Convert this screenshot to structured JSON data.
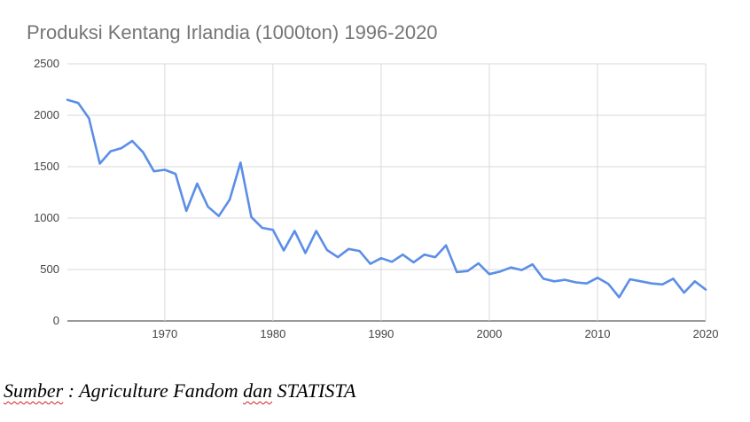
{
  "caption": {
    "source_prefix": "Sumber",
    "source_rest": " : Agriculture Fandom ",
    "source_dan": "dan",
    "source_end": " STATISTA"
  },
  "chart_data": {
    "type": "line",
    "title": "Produksi Kentang Irlandia (1000ton) 1996-2020",
    "xlabel": "",
    "ylabel": "",
    "xlim": [
      1961,
      2020
    ],
    "ylim": [
      0,
      2500
    ],
    "x_ticks": [
      1970,
      1980,
      1990,
      2000,
      2010,
      2020
    ],
    "y_ticks": [
      0,
      500,
      1000,
      1500,
      2000,
      2500
    ],
    "grid": true,
    "legend": "none",
    "line_color": "#5b8ee6",
    "x": [
      1961,
      1962,
      1963,
      1964,
      1965,
      1966,
      1967,
      1968,
      1969,
      1970,
      1971,
      1972,
      1973,
      1974,
      1975,
      1976,
      1977,
      1978,
      1979,
      1980,
      1981,
      1982,
      1983,
      1984,
      1985,
      1986,
      1987,
      1988,
      1989,
      1990,
      1991,
      1992,
      1993,
      1994,
      1995,
      1996,
      1997,
      1998,
      1999,
      2000,
      2001,
      2002,
      2003,
      2004,
      2005,
      2006,
      2007,
      2008,
      2009,
      2010,
      2011,
      2012,
      2013,
      2014,
      2015,
      2016,
      2017,
      2018,
      2019,
      2020
    ],
    "values": [
      2150,
      2120,
      1970,
      1530,
      1650,
      1680,
      1750,
      1640,
      1455,
      1470,
      1430,
      1070,
      1335,
      1110,
      1020,
      1180,
      1540,
      1010,
      905,
      885,
      685,
      875,
      660,
      875,
      690,
      620,
      700,
      680,
      555,
      610,
      575,
      645,
      570,
      645,
      620,
      735,
      475,
      485,
      560,
      455,
      480,
      520,
      495,
      550,
      410,
      385,
      400,
      375,
      365,
      420,
      360,
      230,
      405,
      385,
      365,
      355,
      410,
      275,
      385,
      305
    ]
  }
}
